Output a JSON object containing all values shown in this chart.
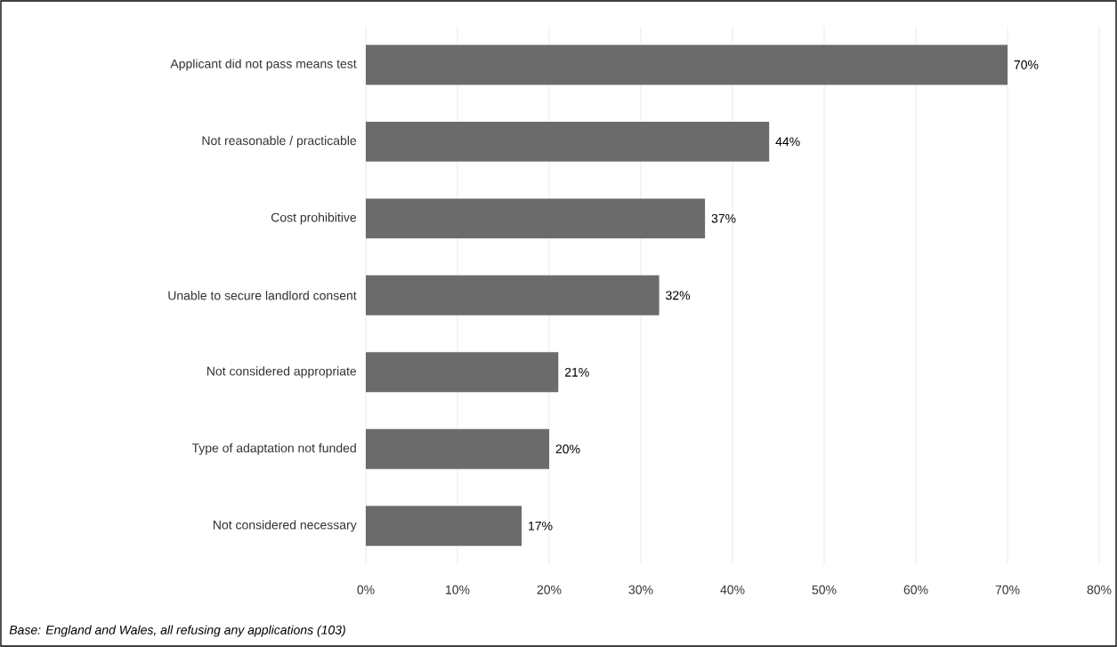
{
  "chart_data": {
    "type": "bar",
    "orientation": "horizontal",
    "categories": [
      "Applicant did not pass means test",
      "Not reasonable / practicable",
      "Cost prohibitive",
      "Unable to secure landlord consent",
      "Not considered appropriate",
      "Type of adaptation not funded",
      "Not considered necessary"
    ],
    "values": [
      70,
      44,
      37,
      32,
      21,
      20,
      17
    ],
    "value_labels": [
      "70%",
      "44%",
      "37%",
      "32%",
      "21%",
      "20%",
      "17%"
    ],
    "color": "#6b6b6b",
    "xlim": [
      0,
      80
    ],
    "xticks": [
      {
        "value": 0,
        "label": "0%"
      },
      {
        "value": 10,
        "label": "10%"
      },
      {
        "value": 20,
        "label": "20%"
      },
      {
        "value": 30,
        "label": "30%"
      },
      {
        "value": 40,
        "label": "40%"
      },
      {
        "value": 50,
        "label": "50%"
      },
      {
        "value": 60,
        "label": "60%"
      },
      {
        "value": 70,
        "label": "70%"
      },
      {
        "value": 80,
        "label": "80%"
      }
    ],
    "grid": "x",
    "annotations": [
      "Base: England and Wales, all refusing any applications (103)"
    ]
  }
}
